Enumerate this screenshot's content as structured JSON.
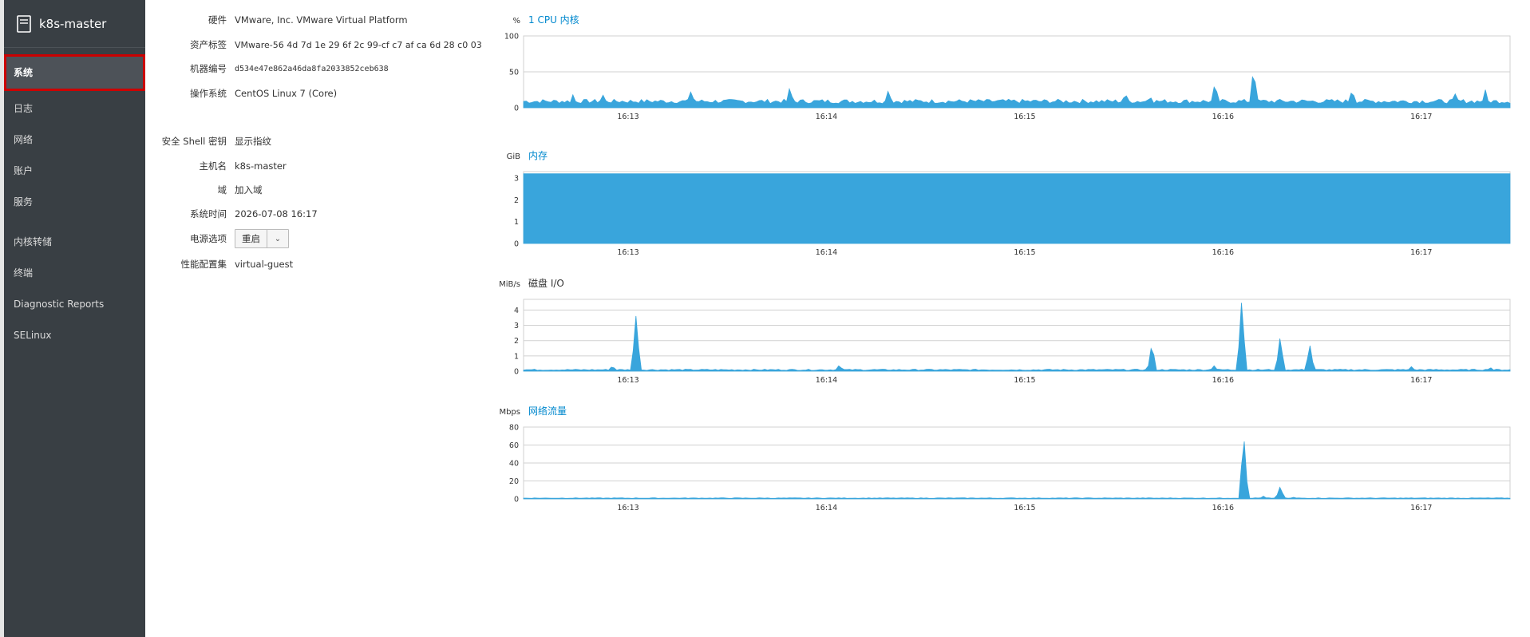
{
  "sidebar": {
    "host": "k8s-master",
    "items": [
      {
        "label": "系统",
        "active": true
      },
      {
        "label": "日志"
      },
      {
        "label": "网络"
      },
      {
        "label": "账户"
      },
      {
        "label": "服务"
      },
      {
        "label": "内核转储"
      },
      {
        "label": "终端"
      },
      {
        "label": "Diagnostic Reports"
      },
      {
        "label": "SELinux"
      }
    ]
  },
  "info": {
    "hardware_label": "硬件",
    "hardware_value": "VMware, Inc. VMware Virtual Platform",
    "asset_label": "资产标签",
    "asset_value": "VMware-56 4d 7d 1e 29 6f 2c 99-cf c7 af ca 6d 28 c0 03",
    "machine_label": "机器编号",
    "machine_value": "d534e47e862a46da8fa2033852ceb638",
    "os_label": "操作系统",
    "os_value": "CentOS Linux 7 (Core)",
    "ssh_label": "安全 Shell 密钥",
    "ssh_value": "显示指纹",
    "hostname_label": "主机名",
    "hostname_value": "k8s-master",
    "domain_label": "域",
    "domain_value": "加入域",
    "time_label": "系统时间",
    "time_value": "2026-07-08 16:17",
    "power_label": "电源选项",
    "power_button": "重启",
    "power_caret": "⌄",
    "profile_label": "性能配置集",
    "profile_value": "virtual-guest"
  },
  "chart_data": [
    {
      "type": "area",
      "unit": "%",
      "title": "1 CPU 内核",
      "title_link": true,
      "ylim": [
        0,
        100
      ],
      "yticks": [
        0,
        50,
        100
      ],
      "x": [
        "16:13",
        "16:14",
        "16:15",
        "16:16",
        "16:17"
      ],
      "baseline": 8,
      "noise": 6,
      "spikes": [
        [
          0.05,
          18
        ],
        [
          0.08,
          20
        ],
        [
          0.17,
          25
        ],
        [
          0.27,
          30
        ],
        [
          0.37,
          26
        ],
        [
          0.61,
          22
        ],
        [
          0.635,
          18
        ],
        [
          0.701,
          37
        ],
        [
          0.74,
          57
        ],
        [
          0.84,
          27
        ],
        [
          0.945,
          22
        ],
        [
          0.975,
          25
        ]
      ],
      "color": "#39a5dc"
    },
    {
      "type": "area",
      "unit": "GiB",
      "title": "内存",
      "title_link": true,
      "ylim": [
        0,
        3.3
      ],
      "yticks": [
        0,
        1,
        2,
        3
      ],
      "x": [
        "16:13",
        "16:14",
        "16:15",
        "16:16",
        "16:17"
      ],
      "baseline": 3.2,
      "noise": 0,
      "spikes": [],
      "color": "#39a5dc"
    },
    {
      "type": "area",
      "unit": "MiB/s",
      "title": "磁盘 I/O",
      "title_link": false,
      "ylim": [
        0,
        4.7
      ],
      "yticks": [
        0,
        1,
        2,
        3,
        4
      ],
      "x": [
        "16:13",
        "16:14",
        "16:15",
        "16:16",
        "16:17"
      ],
      "baseline": 0.08,
      "noise": 0.08,
      "spikes": [
        [
          0.114,
          3.7
        ],
        [
          0.09,
          0.35
        ],
        [
          0.32,
          0.4
        ],
        [
          0.637,
          1.85
        ],
        [
          0.7,
          0.35
        ],
        [
          0.728,
          4.7
        ],
        [
          0.767,
          2.3
        ],
        [
          0.797,
          1.75
        ],
        [
          0.9,
          0.3
        ],
        [
          0.98,
          0.25
        ]
      ],
      "color": "#39a5dc"
    },
    {
      "type": "area",
      "unit": "Mbps",
      "title": "网络流量",
      "title_link": true,
      "ylim": [
        0,
        80
      ],
      "yticks": [
        0,
        20,
        40,
        60,
        80
      ],
      "x": [
        "16:13",
        "16:14",
        "16:15",
        "16:16",
        "16:17"
      ],
      "baseline": 0.8,
      "noise": 0.6,
      "spikes": [
        [
          0.73,
          73
        ],
        [
          0.75,
          3
        ],
        [
          0.767,
          14
        ],
        [
          0.78,
          2
        ]
      ],
      "color": "#39a5dc"
    }
  ]
}
